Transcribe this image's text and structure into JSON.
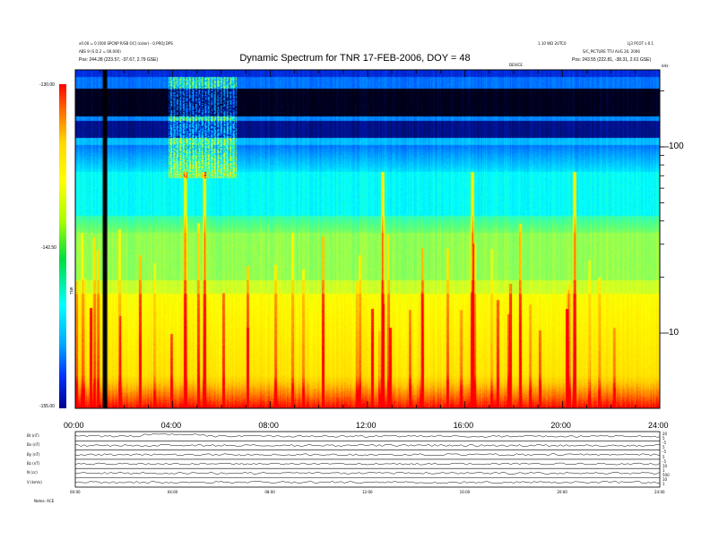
{
  "header": {
    "title": "Dynamic Spectrum for TNR 17-FEB-2006, DOY = 48",
    "left_line1": "x0.00 = 0 [000 SPCNP R/SB OC] (color) - 0.PROJ DPS",
    "left_line2": "ABS 9 (S D.2 = 00.000)",
    "left_line3": "Pos: 244.28 (223.57, -37.67, 2.79 GSE)",
    "right_line1": "1.10 WD 2UTC0",
    "right_line1b": "LJ3 PCOT s.0.1",
    "right_line2": "S/C_PICTURE TTU AUG 20, 2006",
    "right_line3": "Pos: 243.55 (222.81, -38.31, 2.61 GSE)",
    "mid_label": "DEVICE",
    "corner_label": "kHz"
  },
  "colorbar": {
    "top_label": "-130.00",
    "mid_label": "-142.50",
    "bottom_label": "-155.00",
    "unit_label": "TNR"
  },
  "spectrum_axes": {
    "x_ticks": [
      "00:00",
      "04:00",
      "08:00",
      "12:00",
      "16:00",
      "20:00",
      "24:00"
    ],
    "y_ticks": [
      "100",
      "10"
    ]
  },
  "lower_panel": {
    "row_labels": [
      "Bt (nT)",
      "Bx (nT)",
      "By (nT)",
      "Bz (nT)",
      "N (cc)",
      "V (km/s)"
    ],
    "right_labels": [
      "20",
      "5",
      "-5",
      "5",
      "-5",
      "5",
      "-5",
      "10",
      "1",
      "500",
      "10",
      "1"
    ],
    "x_ticks": [
      "00:00",
      "04:00",
      "08:00",
      "12:00",
      "16:00",
      "20:00",
      "24:00"
    ],
    "footer_label": "Notes:  ACE"
  },
  "chart_data": {
    "type": "heatmap",
    "title": "Dynamic Spectrum for TNR 17-FEB-2006, DOY = 48",
    "xlabel": "",
    "ylabel": "kHz",
    "x_range_hours": [
      0,
      24
    ],
    "x_ticks": [
      "00:00",
      "04:00",
      "08:00",
      "12:00",
      "16:00",
      "20:00",
      "24:00"
    ],
    "y_scale": "log",
    "y_ticks": [
      100,
      10
    ],
    "colorbar": {
      "min": -155.0,
      "mid": -142.5,
      "max": -130.0,
      "label": "TNR"
    },
    "colors": {
      "high": "#ff0000",
      "orange": "#ff8a00",
      "yellow": "#ffff00",
      "green": "#7aff3a",
      "cyan": "#00ffff",
      "blue": "#0033ff",
      "dark": "#000018"
    },
    "data_gap_hour": 1.2,
    "notable_bursts_hours": [
      4.5,
      5.3,
      12.6,
      16.3,
      20.5
    ]
  }
}
